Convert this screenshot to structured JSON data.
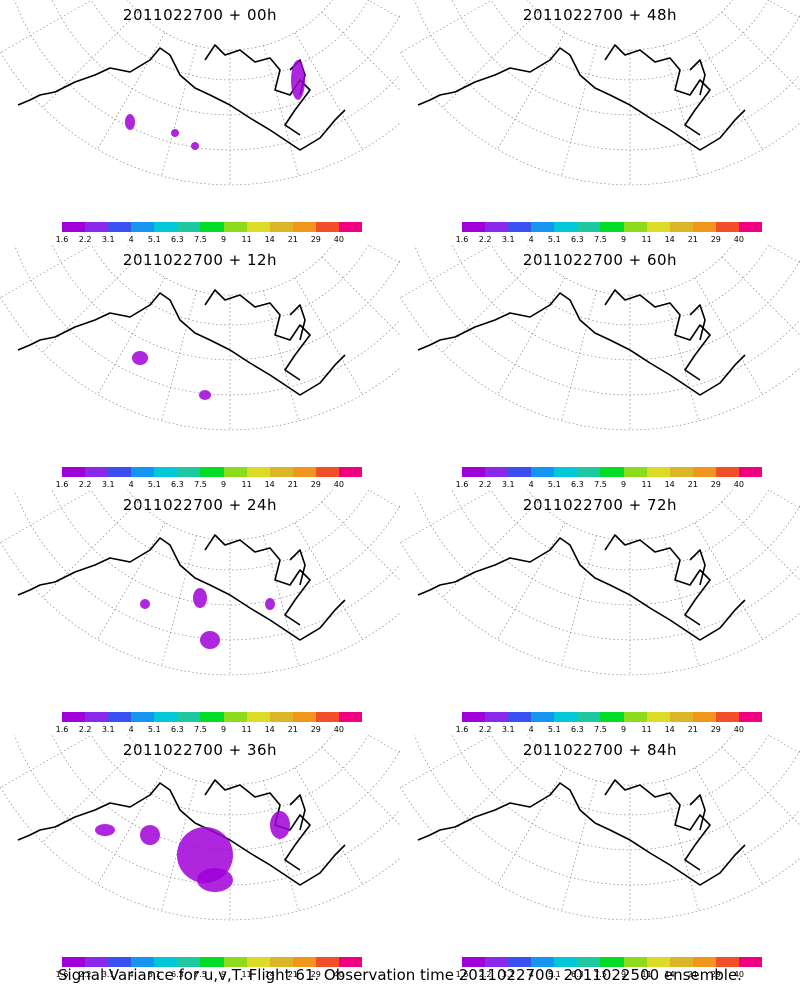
{
  "panels": [
    {
      "title": "2011022700  +  00h"
    },
    {
      "title": "2011022700  +  48h"
    },
    {
      "title": "2011022700  +  12h"
    },
    {
      "title": "2011022700  +  60h"
    },
    {
      "title": "2011022700  +  24h"
    },
    {
      "title": "2011022700  +  72h"
    },
    {
      "title": "2011022700  +  36h"
    },
    {
      "title": "2011022700  +  84h"
    }
  ],
  "colorbar": {
    "colors": [
      "#a000d8",
      "#8c28e8",
      "#3c50f0",
      "#1496f0",
      "#00c8d8",
      "#1ec8a0",
      "#00dc28",
      "#8cdc1e",
      "#dcdc28",
      "#dcb428",
      "#f0961e",
      "#f05028",
      "#f00080"
    ],
    "labels": [
      "1.6",
      "2.2",
      "3.1",
      "4",
      "5.1",
      "6.3",
      "7.5",
      "9",
      "11",
      "14",
      "21",
      "29",
      "40"
    ]
  },
  "caption": "Signal Variance for u,v,T. Flight 61. Observation time 2011022700. 2011022500 ensemble."
}
